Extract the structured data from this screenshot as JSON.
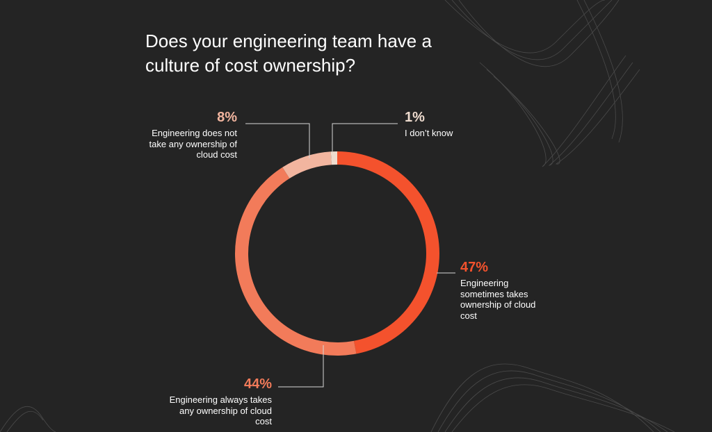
{
  "chart_data": {
    "type": "donut",
    "title": "Does your engineering team have a culture of cost ownership?",
    "categories": [
      "Engineering sometimes takes ownership of cloud cost",
      "Engineering always takes any ownership of cloud cost",
      "Engineering does not take any ownership of cloud cost",
      "I don’t know"
    ],
    "values": [
      47,
      44,
      8,
      1
    ],
    "value_labels": [
      "47%",
      "44%",
      "8%",
      "1%"
    ],
    "colors": [
      "#f4522d",
      "#f27b5a",
      "#f2b59f",
      "#efdccf"
    ]
  }
}
